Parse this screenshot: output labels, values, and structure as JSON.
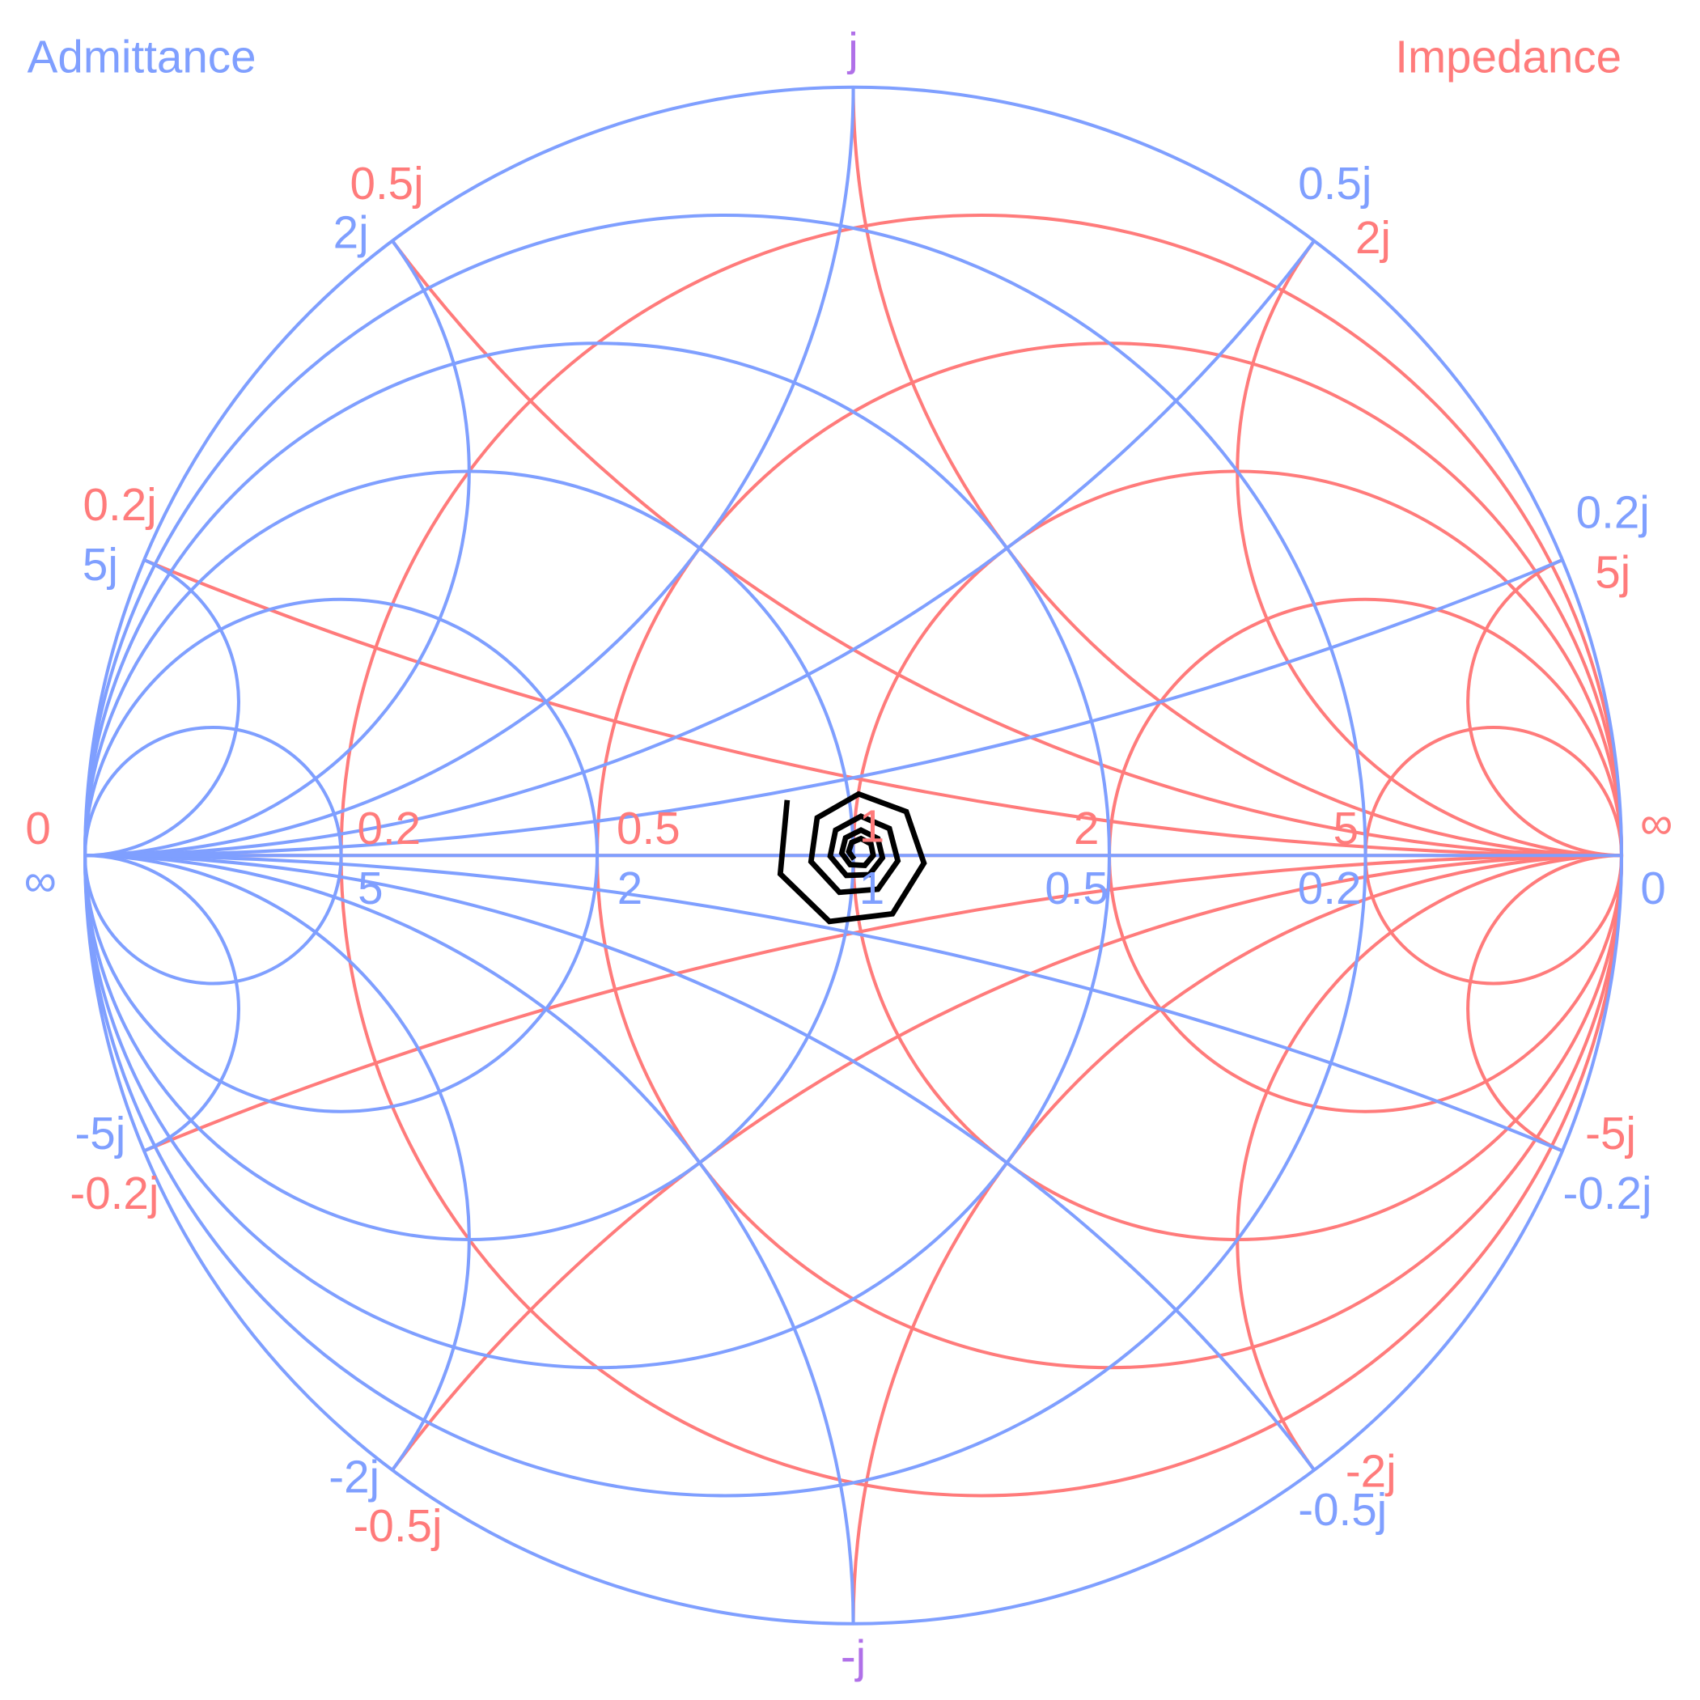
{
  "chart_data": {
    "type": "line",
    "subtype": "smith-chart",
    "titles": {
      "left": "Admittance",
      "right": "Impedance"
    },
    "colors": {
      "impedance": "#ff7b7b",
      "admittance": "#7f9fff",
      "shared": "#b070e8",
      "data": "#000000"
    },
    "grid": {
      "resistance_values": [
        0.2,
        0.5,
        1,
        2,
        5
      ],
      "reactance_values": [
        0.2,
        0.5,
        1,
        2,
        5,
        -0.2,
        -0.5,
        -1,
        -2,
        -5
      ]
    },
    "labels": {
      "impedance_real": [
        "0",
        "0.2",
        "0.5",
        "1",
        "2",
        "5",
        "∞"
      ],
      "admittance_real": [
        "∞",
        "5",
        "2",
        "1",
        "0.5",
        "0.2",
        "0"
      ],
      "impedance_imag": [
        "0.5j",
        "0.2j",
        "-0.2j",
        "-0.5j",
        "2j",
        "5j",
        "-5j",
        "-2j"
      ],
      "admittance_imag": [
        "2j",
        "5j",
        "-5j",
        "-2j",
        "0.5j",
        "0.2j",
        "-0.2j",
        "-0.5j"
      ],
      "top": "j",
      "bottom": "-j"
    },
    "series": [
      {
        "gamma_real": [
          -0.086,
          -0.095,
          -0.031,
          0.051,
          0.092,
          0.069,
          0.007,
          -0.047,
          -0.055,
          -0.018,
          0.032,
          0.058,
          0.047,
          0.01,
          -0.023,
          -0.03,
          -0.009,
          0.021,
          0.038,
          0.032,
          0.01,
          -0.01,
          -0.015,
          -0.004,
          0.015,
          0.026,
          0.023,
          0.01,
          -0.002,
          -0.006,
          0.001
        ],
        "gamma_imag": [
          0.072,
          -0.024,
          -0.086,
          -0.076,
          -0.01,
          0.057,
          0.08,
          0.049,
          -0.008,
          -0.048,
          -0.044,
          -0.007,
          0.035,
          0.051,
          0.033,
          -0.001,
          -0.026,
          -0.025,
          -0.003,
          0.022,
          0.033,
          0.023,
          0.003,
          -0.012,
          -0.013,
          0.0,
          0.015,
          0.022,
          0.017,
          0.005,
          -0.005
        ]
      }
    ]
  }
}
